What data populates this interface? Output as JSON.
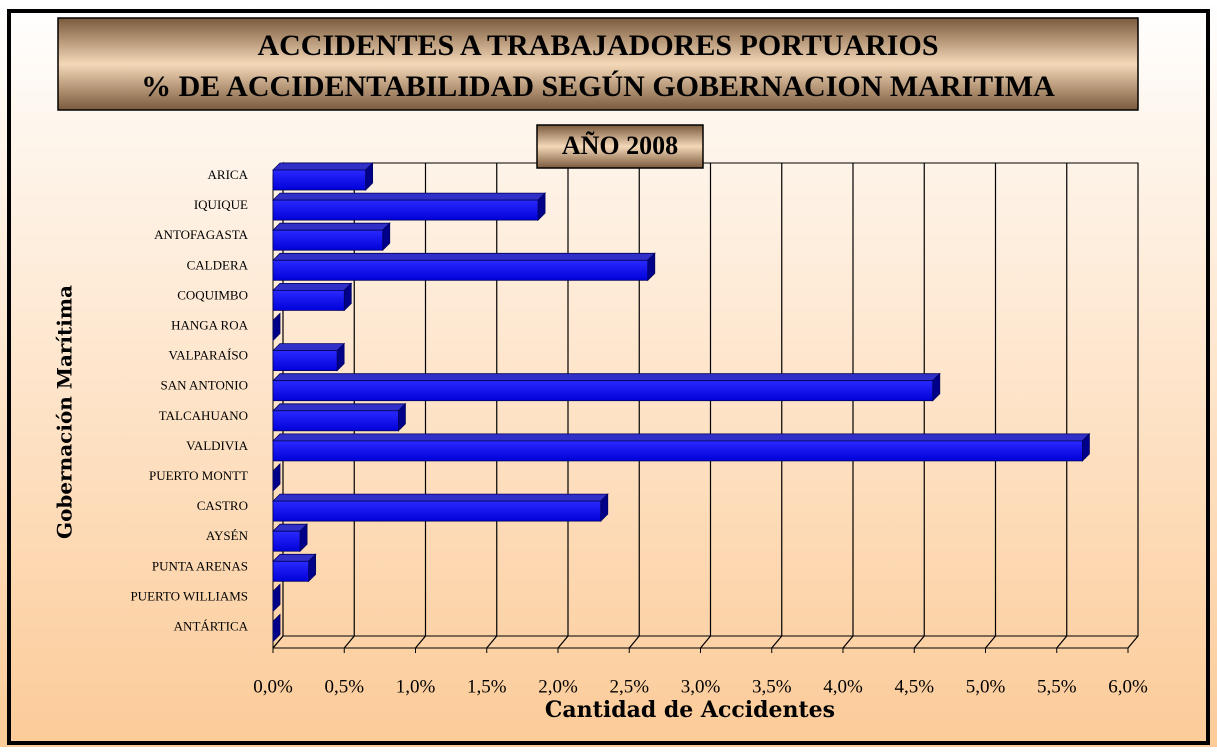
{
  "chart_data": {
    "type": "bar3d_horizontal",
    "title": "ACCIDENTES A TRABAJADORES PORTUARIOS",
    "subtitle": "% DE ACCIDENTABILIDAD SEGÚN GOBERNACION MARITIMA",
    "annotation": "AÑO 2008",
    "x_label": "Cantidad de Accidentes",
    "y_label": "Gobernación Marítima",
    "categories": [
      "ARICA",
      "IQUIQUE",
      "ANTOFAGASTA",
      "CALDERA",
      "COQUIMBO",
      "HANGA ROA",
      "VALPARAÍSO",
      "SAN ANTONIO",
      "TALCAHUANO",
      "VALDIVIA",
      "PUERTO MONTT",
      "CASTRO",
      "AYSÉN",
      "PUNTA ARENAS",
      "PUERTO WILLIAMS",
      "ANTÁRTICA"
    ],
    "values": [
      0.65,
      1.86,
      0.77,
      2.63,
      0.5,
      0,
      0.45,
      4.63,
      0.88,
      5.68,
      0,
      2.3,
      0.19,
      0.25,
      0,
      0
    ],
    "color": "#1010f0",
    "xlim": [
      0,
      6
    ],
    "xticks": [
      {
        "value": 0,
        "label": "0,0%"
      },
      {
        "value": 0.5,
        "label": "0,5%"
      },
      {
        "value": 1,
        "label": "1,0%"
      },
      {
        "value": 1.5,
        "label": "1,5%"
      },
      {
        "value": 2,
        "label": "2,0%"
      },
      {
        "value": 2.5,
        "label": "2,5%"
      },
      {
        "value": 3,
        "label": "3,0%"
      },
      {
        "value": 3.5,
        "label": "3,5%"
      },
      {
        "value": 4,
        "label": "4,0%"
      },
      {
        "value": 4.5,
        "label": "4,5%"
      },
      {
        "value": 5,
        "label": "5,0%"
      },
      {
        "value": 5.5,
        "label": "5,5%"
      },
      {
        "value": 6,
        "label": "6,0%"
      }
    ],
    "grid": true
  }
}
